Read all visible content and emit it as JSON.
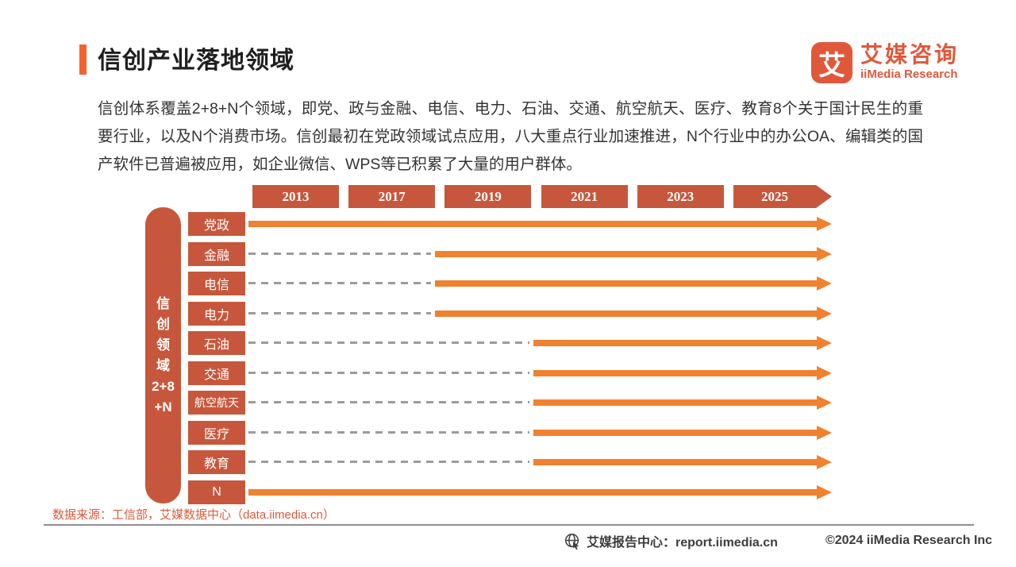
{
  "page": {
    "title": "信创产业落地领域"
  },
  "logo": {
    "glyph": "艾",
    "name_cn": "艾媒咨询",
    "name_en": "iiMedia Research"
  },
  "intro": {
    "text": "信创体系覆盖2+8+N个领域，即党、政与金融、电信、电力、石油、交通、航空航天、医疗、教育8个关于国计民生的重要行业，以及N个消费市场。信创最初在党政领域试点应用，八大重点行业加速推进，N个行业中的办公OA、编辑类的国产软件已普遍被应用，如企业微信、WPS等已积累了大量的用户群体。"
  },
  "chart": {
    "axis_label_lines": [
      "信",
      "创",
      "领",
      "域",
      "2+8",
      "+N"
    ],
    "years": [
      "2013",
      "2017",
      "2019",
      "2021",
      "2023",
      "2025"
    ],
    "rows": [
      {
        "label": "党政",
        "start_year": 2013
      },
      {
        "label": "金融",
        "start_year": 2019
      },
      {
        "label": "电信",
        "start_year": 2019
      },
      {
        "label": "电力",
        "start_year": 2019
      },
      {
        "label": "石油",
        "start_year": 2021
      },
      {
        "label": "交通",
        "start_year": 2021
      },
      {
        "label": "航空航天",
        "start_year": 2021
      },
      {
        "label": "医疗",
        "start_year": 2021
      },
      {
        "label": "教育",
        "start_year": 2021
      },
      {
        "label": "N",
        "start_year": 2013
      }
    ]
  },
  "chart_data": {
    "type": "bar",
    "variant": "gantt-timeline",
    "title": "信创产业落地领域",
    "x_ticks": [
      "2013",
      "2017",
      "2019",
      "2021",
      "2023",
      "2025"
    ],
    "x_range": [
      2013,
      2025
    ],
    "y_axis_label": "信创领域2+8+N",
    "categories": [
      "党政",
      "金融",
      "电信",
      "电力",
      "石油",
      "交通",
      "航空航天",
      "医疗",
      "教育",
      "N"
    ],
    "series": [
      {
        "name": "党政",
        "solid_start": 2013,
        "solid_end": "2025+"
      },
      {
        "name": "金融",
        "solid_start": 2019,
        "solid_end": "2025+"
      },
      {
        "name": "电信",
        "solid_start": 2019,
        "solid_end": "2025+"
      },
      {
        "name": "电力",
        "solid_start": 2019,
        "solid_end": "2025+"
      },
      {
        "name": "石油",
        "solid_start": 2021,
        "solid_end": "2025+"
      },
      {
        "name": "交通",
        "solid_start": 2021,
        "solid_end": "2025+"
      },
      {
        "name": "航空航天",
        "solid_start": 2021,
        "solid_end": "2025+"
      },
      {
        "name": "医疗",
        "solid_start": 2021,
        "solid_end": "2025+"
      },
      {
        "name": "教育",
        "solid_start": 2021,
        "solid_end": "2025+"
      },
      {
        "name": "N",
        "solid_start": 2013,
        "solid_end": "2025+"
      }
    ],
    "legend": "灰色虚线=落地前阶段；橙色实线箭头=已落地并持续推进",
    "grid": false
  },
  "footer": {
    "source": "数据来源：工信部，艾媒数据中心（data.iimedia.cn）",
    "report_center": "艾媒报告中心：report.iimedia.cn",
    "copyright": "©2024  iiMedia Research Inc"
  },
  "colors": {
    "brick_box": "#C7573C",
    "arrow_orange": "#F0812F",
    "dash_gray": "#9B9B9B",
    "title_accent": "#F4632C",
    "logo_orange": "#E0583A",
    "source_text": "#DB5B39",
    "footer_text": "#3D3D3D"
  }
}
